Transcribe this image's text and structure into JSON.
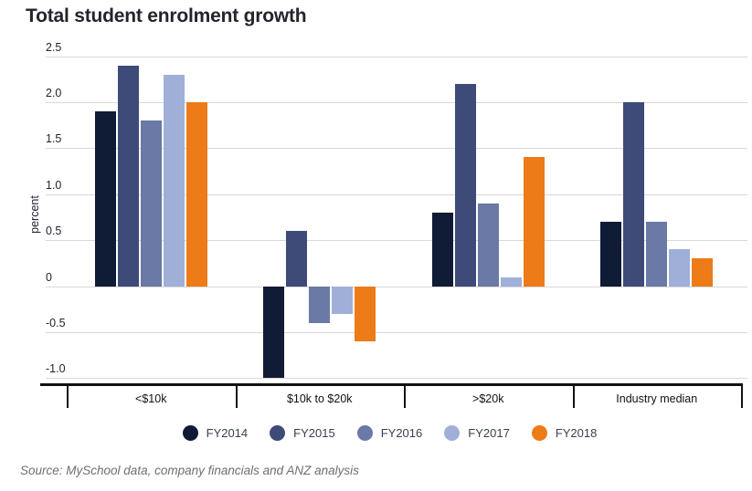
{
  "page": {
    "title": "Total student enrolment growth",
    "source": "Source: MySchool data, company financials and ANZ analysis"
  },
  "chart_data": {
    "type": "bar",
    "title": "Total student enrolment growth",
    "xlabel": "",
    "ylabel": "percent",
    "categories": [
      "<$10k",
      "$10k to $20k",
      ">$20k",
      "Industry median"
    ],
    "series": [
      {
        "name": "FY2014",
        "color": "#101b35",
        "values": [
          1.9,
          -1.0,
          0.8,
          0.7
        ]
      },
      {
        "name": "FY2015",
        "color": "#3e4b79",
        "values": [
          2.4,
          0.6,
          2.2,
          2.0
        ]
      },
      {
        "name": "FY2016",
        "color": "#6a79a5",
        "values": [
          1.8,
          -0.4,
          0.9,
          0.7
        ]
      },
      {
        "name": "FY2017",
        "color": "#9fafd7",
        "values": [
          2.3,
          -0.3,
          0.1,
          0.4
        ]
      },
      {
        "name": "FY2018",
        "color": "#ec7b18",
        "values": [
          2.0,
          -0.6,
          1.4,
          0.3
        ]
      }
    ],
    "yticks": [
      2.5,
      2.0,
      1.5,
      1.0,
      0.5,
      0,
      -0.5,
      -1.0
    ],
    "ytick_labels": [
      "2.5",
      "2.0",
      "1.5",
      "1.0",
      "0.5",
      "0",
      "-0.5",
      "-1.0"
    ],
    "ylim": [
      -1.0,
      2.5
    ],
    "grid": true,
    "legend_position": "bottom",
    "legend": [
      "FY2014",
      "FY2015",
      "FY2016",
      "FY2017",
      "FY2018"
    ]
  },
  "colors": {
    "background": "#ffffff",
    "grid": "#d8d8d8",
    "axis": "#111111",
    "title": "#23252d",
    "tick_label": "#20242e",
    "category_label": "#111111",
    "legend_label": "#3a4050",
    "source": "#6e6f72"
  }
}
